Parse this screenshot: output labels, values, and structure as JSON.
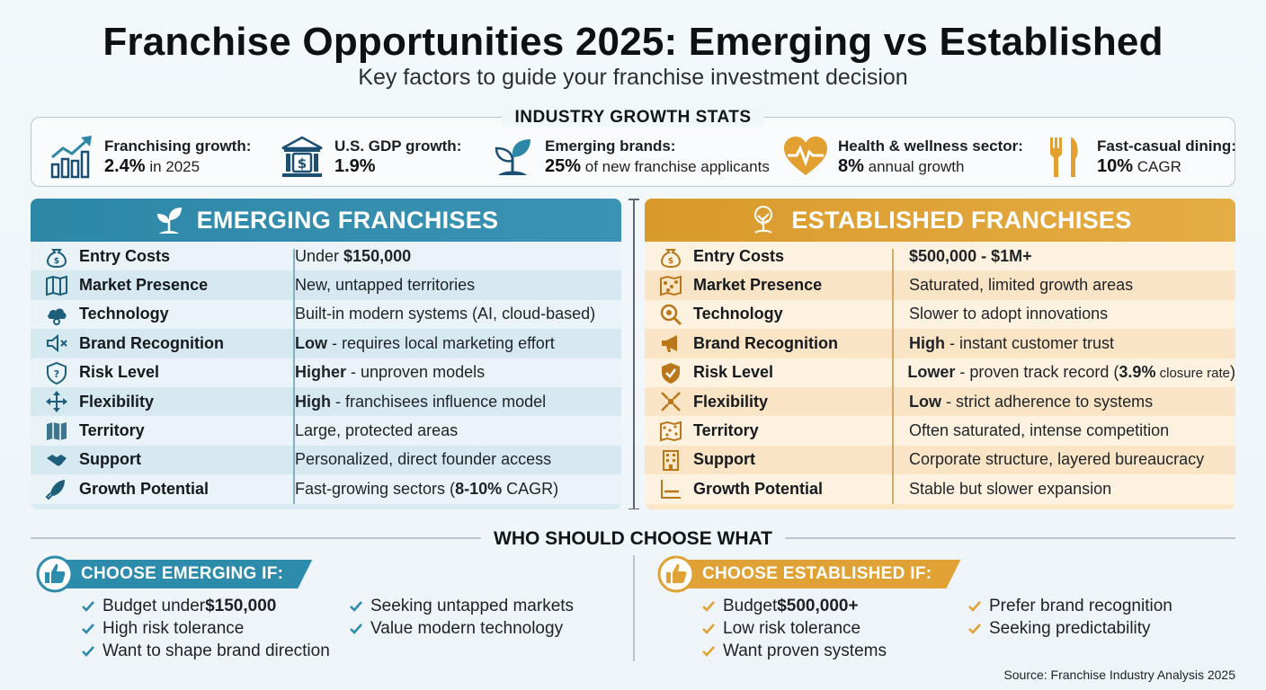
{
  "title": "Franchise Opportunities 2025: Emerging vs Established",
  "subtitle": "Key factors to guide your franchise investment decision",
  "stats": {
    "heading": "INDUSTRY GROWTH STATS",
    "items": [
      {
        "icon": "bar-chart-growth-icon",
        "label": "Franchising growth:",
        "value": "2.4%",
        "suffix": " in 2025"
      },
      {
        "icon": "bank-dollar-icon",
        "label": "U.S. GDP growth:",
        "value": "1.9%",
        "suffix": ""
      },
      {
        "icon": "sprout-icon",
        "label": "Emerging brands:",
        "value": "25%",
        "suffix": " of new franchise applicants"
      },
      {
        "icon": "heart-pulse-icon",
        "label": "Health & wellness sector:",
        "value": "8%",
        "suffix": " annual growth"
      },
      {
        "icon": "fork-knife-icon",
        "label": "Fast-casual dining:",
        "value": "10%",
        "suffix": " CAGR"
      }
    ]
  },
  "emerging": {
    "heading": "EMERGING FRANCHISES",
    "color": "#2d87a6",
    "rows": [
      {
        "icon": "money-bag-icon",
        "factor": "Entry Costs",
        "pre": "Under ",
        "bold": "$150,000",
        "post": ""
      },
      {
        "icon": "map-icon",
        "factor": "Market Presence",
        "pre": "New, untapped territories",
        "bold": "",
        "post": ""
      },
      {
        "icon": "cloud-gear-icon",
        "factor": "Technology",
        "pre": "Built-in modern systems (AI, cloud-based)",
        "bold": "",
        "post": ""
      },
      {
        "icon": "speaker-muted-icon",
        "factor": "Brand Recognition",
        "pre": "",
        "bold": "Low",
        "post": " - requires local marketing effort"
      },
      {
        "icon": "shield-question-icon",
        "factor": "Risk Level",
        "pre": "",
        "bold": "Higher",
        "post": " - unproven models"
      },
      {
        "icon": "arrows-out-icon",
        "factor": "Flexibility",
        "pre": "",
        "bold": "High",
        "post": " - franchisees influence model"
      },
      {
        "icon": "folded-map-icon",
        "factor": "Territory",
        "pre": "Large, protected areas",
        "bold": "",
        "post": ""
      },
      {
        "icon": "handshake-icon",
        "factor": "Support",
        "pre": "Personalized, direct founder access",
        "bold": "",
        "post": ""
      },
      {
        "icon": "rocket-icon",
        "factor": "Growth Potential",
        "pre": "Fast-growing sectors (",
        "bold": "8-10%",
        "post": " CAGR)"
      }
    ]
  },
  "established": {
    "heading": "ESTABLISHED FRANCHISES",
    "color": "#d99a2c",
    "rows": [
      {
        "icon": "money-bag-icon",
        "factor": "Entry Costs",
        "pre": "",
        "bold": "$500,000 - $1M+",
        "post": ""
      },
      {
        "icon": "crowded-map-icon",
        "factor": "Market Presence",
        "pre": "Saturated, limited growth areas",
        "bold": "",
        "post": ""
      },
      {
        "icon": "magnifier-gear-icon",
        "factor": "Technology",
        "pre": "Slower to adopt innovations",
        "bold": "",
        "post": ""
      },
      {
        "icon": "megaphone-icon",
        "factor": "Brand Recognition",
        "pre": "",
        "bold": "High",
        "post": " - instant customer trust"
      },
      {
        "icon": "shield-check-icon",
        "factor": "Risk Level",
        "pre": "",
        "bold": "Lower",
        "post": " - proven track record (",
        "bold2": "3.9%",
        "small": " closure rate",
        "post2": ")"
      },
      {
        "icon": "arrows-in-icon",
        "factor": "Flexibility",
        "pre": "",
        "bold": "Low",
        "post": " - strict adherence to systems"
      },
      {
        "icon": "dense-map-icon",
        "factor": "Territory",
        "pre": "Often saturated, intense competition",
        "bold": "",
        "post": ""
      },
      {
        "icon": "office-building-icon",
        "factor": "Support",
        "pre": "Corporate structure, layered bureaucracy",
        "bold": "",
        "post": ""
      },
      {
        "icon": "flat-line-chart-icon",
        "factor": "Growth Potential",
        "pre": "Stable but slower expansion",
        "bold": "",
        "post": ""
      }
    ]
  },
  "who": {
    "heading": "WHO SHOULD CHOOSE WHAT",
    "emerging": {
      "label": "CHOOSE EMERGING IF:",
      "col1": [
        {
          "pre": "Budget under ",
          "bold": "$150,000"
        },
        {
          "pre": "High risk tolerance",
          "bold": ""
        },
        {
          "pre": "Want to shape brand direction",
          "bold": ""
        }
      ],
      "col2": [
        {
          "pre": "Seeking untapped markets",
          "bold": ""
        },
        {
          "pre": "Value modern technology",
          "bold": ""
        }
      ]
    },
    "established": {
      "label": "CHOOSE ESTABLISHED IF:",
      "col1": [
        {
          "pre": "Budget ",
          "bold": "$500,000+"
        },
        {
          "pre": "Low risk tolerance",
          "bold": ""
        },
        {
          "pre": "Want proven systems",
          "bold": ""
        }
      ],
      "col2": [
        {
          "pre": "Prefer brand recognition",
          "bold": ""
        },
        {
          "pre": "Seeking predictability",
          "bold": ""
        }
      ]
    }
  },
  "source": "Source: Franchise Industry Analysis 2025"
}
